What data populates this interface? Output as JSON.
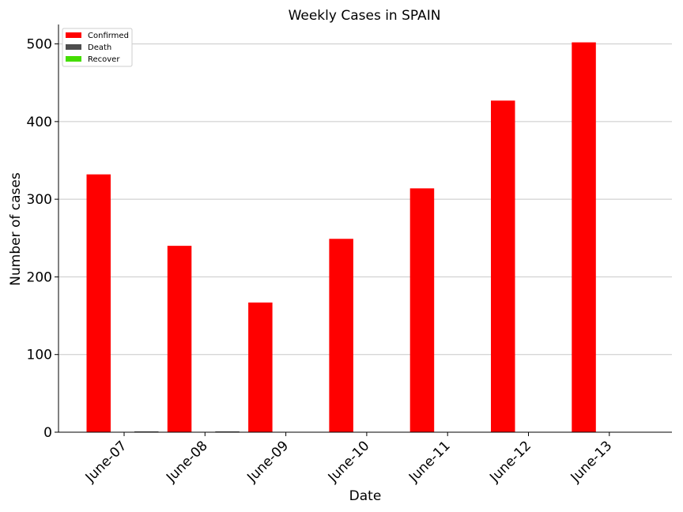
{
  "chart_data": {
    "type": "bar",
    "title": "Weekly Cases in SPAIN",
    "xlabel": "Date",
    "ylabel": "Number of cases",
    "categories": [
      "June-07",
      "June-08",
      "June-09",
      "June-10",
      "June-11",
      "June-12",
      "June-13"
    ],
    "series": [
      {
        "name": "Confirmed",
        "color": "#ff0000",
        "values": [
          332,
          240,
          167,
          249,
          314,
          427,
          502
        ]
      },
      {
        "name": "Death",
        "color": "#4d4d4d",
        "values": [
          1,
          1,
          0,
          0,
          0,
          0,
          0
        ]
      },
      {
        "name": "Recover",
        "color": "#44dd00",
        "values": [
          0,
          0,
          0,
          0,
          0,
          0,
          0
        ]
      }
    ],
    "ylim": [
      0,
      525
    ],
    "yticks": [
      0,
      100,
      200,
      300,
      400,
      500
    ],
    "grid": "y",
    "legend_position": "top-left"
  }
}
